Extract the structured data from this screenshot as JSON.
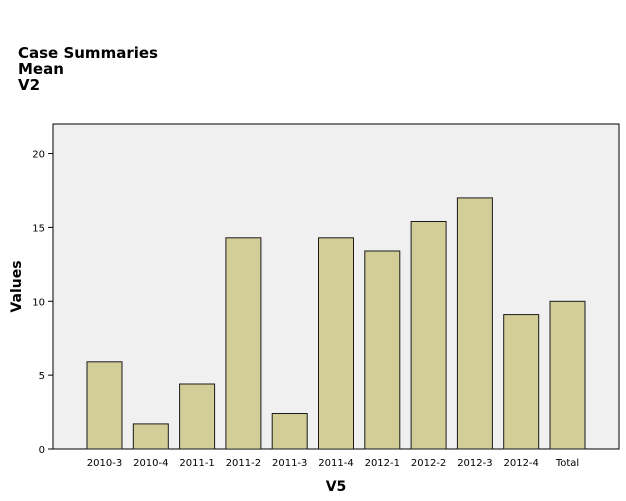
{
  "header": {
    "title": "Case Summaries",
    "subtitle_1": "Mean",
    "subtitle_2": "V2"
  },
  "chart_data": {
    "type": "bar",
    "xlabel": "V5",
    "ylabel": "Values",
    "ylim": [
      0,
      22
    ],
    "yticks": [
      0,
      5,
      10,
      15,
      20
    ],
    "grid": false,
    "categories": [
      "2010-3",
      "2010-4",
      "2011-1",
      "2011-2",
      "2011-3",
      "2011-4",
      "2012-1",
      "2012-2",
      "2012-3",
      "2012-4",
      "Total"
    ],
    "values": [
      5.9,
      1.7,
      4.4,
      14.3,
      2.4,
      14.3,
      13.4,
      15.4,
      17.0,
      9.1,
      10.0
    ],
    "colors": {
      "bar_fill": "#d3ce97",
      "bar_stroke": "#1a1a1a",
      "plot_background": "#f0f0f0",
      "plot_border": "#000000"
    }
  }
}
